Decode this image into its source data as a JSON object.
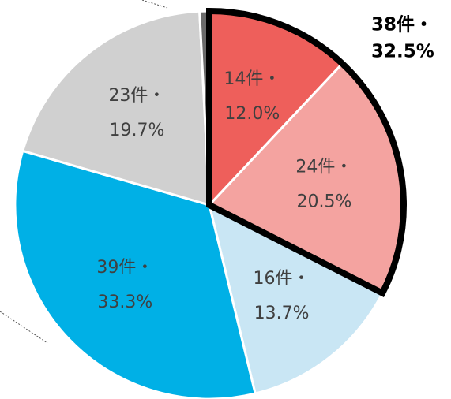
{
  "chart_data": {
    "type": "pie",
    "categories": [
      "14件・",
      "24件・",
      "16件・",
      "39件・",
      "23件・",
      null
    ],
    "values": [
      12.0,
      20.5,
      13.7,
      33.3,
      19.7,
      0.8
    ],
    "value_labels": [
      "12.0%",
      "20.5%",
      "13.7%",
      "33.3%",
      "19.7%",
      null
    ],
    "colors": [
      "#ee5f5b",
      "#f4a3a0",
      "#c9e6f4",
      "#00b0e6",
      "#d0d0d0",
      "#6b6b6b"
    ],
    "start_angle": 0,
    "direction": "clockwise",
    "highlight": {
      "label_top": "38件・",
      "label_bottom": "32.5%",
      "value": 32.5,
      "slices": [
        0,
        1
      ],
      "outline": "#000000"
    }
  }
}
